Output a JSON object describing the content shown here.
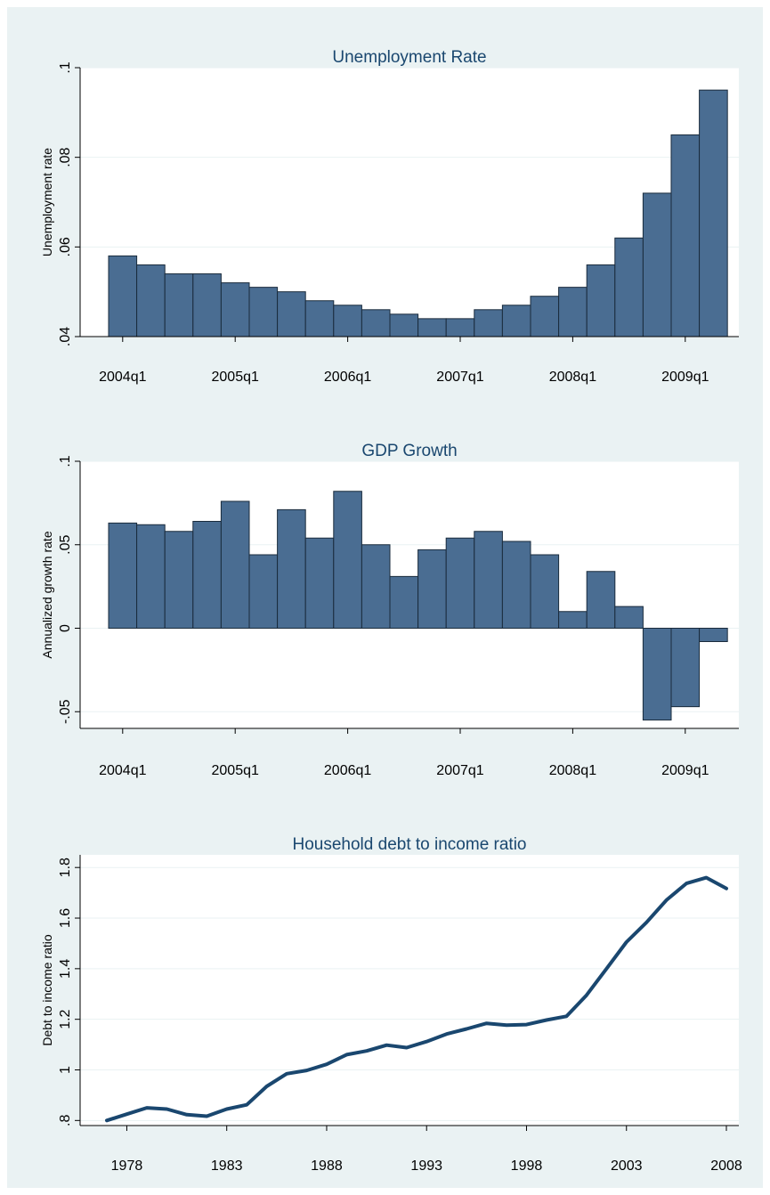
{
  "chart_data": [
    {
      "type": "bar",
      "title": "Unemployment Rate",
      "xlabel": "",
      "ylabel": "Unemployment rate",
      "ylim": [
        0.04,
        0.1
      ],
      "yticks": [
        0.04,
        0.06,
        0.08,
        0.1
      ],
      "ytick_labels": [
        ".04",
        ".06",
        ".08",
        ".1"
      ],
      "xticks": [
        "2004q1",
        "2005q1",
        "2006q1",
        "2007q1",
        "2008q1",
        "2009q1"
      ],
      "categories": [
        "2004q1",
        "2004q2",
        "2004q3",
        "2004q4",
        "2005q1",
        "2005q2",
        "2005q3",
        "2005q4",
        "2006q1",
        "2006q2",
        "2006q3",
        "2006q4",
        "2007q1",
        "2007q2",
        "2007q3",
        "2007q4",
        "2008q1",
        "2008q2",
        "2008q3",
        "2008q4",
        "2009q1",
        "2009q2"
      ],
      "values": [
        0.058,
        0.056,
        0.054,
        0.054,
        0.052,
        0.051,
        0.05,
        0.048,
        0.047,
        0.046,
        0.045,
        0.044,
        0.044,
        0.046,
        0.047,
        0.049,
        0.051,
        0.056,
        0.062,
        0.072,
        0.085,
        0.095
      ],
      "bar_color": "#4a6d92",
      "grid": true
    },
    {
      "type": "bar",
      "title": "GDP Growth",
      "xlabel": "",
      "ylabel": "Annualized growth rate",
      "ylim": [
        -0.06,
        0.1
      ],
      "yticks": [
        -0.05,
        0,
        0.05,
        0.1
      ],
      "ytick_labels": [
        "-.05",
        "0",
        ".05",
        ".1"
      ],
      "xticks": [
        "2004q1",
        "2005q1",
        "2006q1",
        "2007q1",
        "2008q1",
        "2009q1"
      ],
      "categories": [
        "2004q1",
        "2004q2",
        "2004q3",
        "2004q4",
        "2005q1",
        "2005q2",
        "2005q3",
        "2005q4",
        "2006q1",
        "2006q2",
        "2006q3",
        "2006q4",
        "2007q1",
        "2007q2",
        "2007q3",
        "2007q4",
        "2008q1",
        "2008q2",
        "2008q3",
        "2008q4",
        "2009q1",
        "2009q2"
      ],
      "values": [
        0.063,
        0.062,
        0.058,
        0.064,
        0.076,
        0.044,
        0.071,
        0.054,
        0.082,
        0.05,
        0.031,
        0.047,
        0.054,
        0.058,
        0.052,
        0.044,
        0.01,
        0.034,
        0.013,
        -0.055,
        -0.047,
        -0.008
      ],
      "bar_color": "#4a6d92",
      "grid": true
    },
    {
      "type": "line",
      "title": "Household debt to income ratio",
      "xlabel": "",
      "ylabel": "Debt to income ratio",
      "ylim": [
        0.78,
        1.85
      ],
      "yticks": [
        0.8,
        1,
        1.2,
        1.4,
        1.6,
        1.8
      ],
      "ytick_labels": [
        ".8",
        "1",
        "1.2",
        "1.4",
        "1.6",
        "1.8"
      ],
      "xticks": [
        1978,
        1983,
        1988,
        1993,
        1998,
        2003,
        2008
      ],
      "x": [
        1977,
        1978,
        1979,
        1980,
        1981,
        1982,
        1983,
        1984,
        1985,
        1986,
        1987,
        1988,
        1989,
        1990,
        1991,
        1992,
        1993,
        1994,
        1995,
        1996,
        1997,
        1998,
        1999,
        2000,
        2001,
        2002,
        2003,
        2004,
        2005,
        2006,
        2007,
        2008
      ],
      "values": [
        0.8,
        0.825,
        0.85,
        0.845,
        0.823,
        0.817,
        0.845,
        0.862,
        0.935,
        0.985,
        0.998,
        1.022,
        1.06,
        1.075,
        1.098,
        1.088,
        1.112,
        1.142,
        1.162,
        1.184,
        1.177,
        1.179,
        1.197,
        1.212,
        1.295,
        1.4,
        1.505,
        1.583,
        1.671,
        1.737,
        1.76,
        1.717
      ],
      "line_color": "#1a476f",
      "grid": true
    }
  ]
}
